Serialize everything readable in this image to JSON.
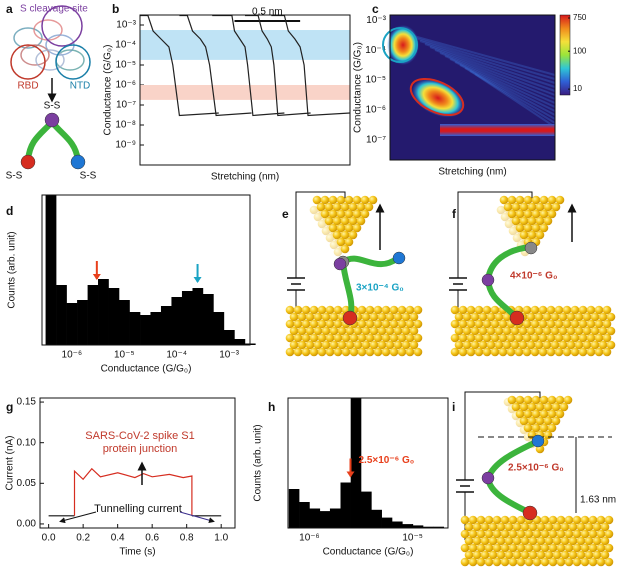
{
  "panel_labels": [
    "a",
    "b",
    "c",
    "d",
    "e",
    "f",
    "g",
    "h",
    "i"
  ],
  "diagram_a": {
    "site": "S cleavage site",
    "rbd": "RBD",
    "ntd": "NTD",
    "bonds": [
      "S-S",
      "S-S",
      "S-S"
    ]
  },
  "diagram_e": {
    "conductance": "3×10⁻⁴ G₀"
  },
  "diagram_f": {
    "conductance": "4×10⁻⁶ G₀"
  },
  "diagram_i": {
    "conductance": "2.5×10⁻⁶ G₀",
    "gap": "1.63 nm"
  },
  "chart_data": [
    {
      "type": "line",
      "log_y": true,
      "y_label": "Conductance (G/G₀)",
      "x_label": "Stretching (nm)",
      "scale_bar": {
        "length": 0.5,
        "label": "0.5 nm"
      },
      "xlim": [
        0,
        1.6
      ],
      "ylim": [
        1e-10,
        0.00316
      ],
      "yticks": [
        {
          "value": 0.001,
          "label": "10⁻³"
        },
        {
          "value": 0.0001,
          "label": "10⁻⁴"
        },
        {
          "value": 1e-05,
          "label": "10⁻⁵"
        },
        {
          "value": 1e-06,
          "label": "10⁻⁶"
        },
        {
          "value": 1e-07,
          "label": "10⁻⁷"
        },
        {
          "value": 1e-08,
          "label": "10⁻⁸"
        },
        {
          "value": 1e-09,
          "label": "10⁻⁹"
        }
      ],
      "bands": [
        {
          "range": [
            1.8e-05,
            0.00056
          ],
          "color": "#bfe3f5"
        },
        {
          "range": [
            1.8e-07,
            1e-06
          ],
          "color": "#f9d3c8"
        }
      ],
      "series": [
        {
          "color": "#222222",
          "x": [
            0,
            0.06,
            0.1,
            0.16,
            0.22,
            0.25,
            0.3,
            0.6
          ],
          "values": [
            0.003,
            0.003,
            0.0005,
            0.0002,
            8e-05,
            1e-05,
            3e-08,
            4e-08
          ]
        },
        {
          "color": "#222222",
          "x": [
            0.3,
            0.36,
            0.4,
            0.46,
            0.5,
            0.53,
            0.58,
            0.85
          ],
          "values": [
            0.003,
            0.003,
            0.0005,
            0.0002,
            8e-05,
            1e-05,
            3e-08,
            4e-08
          ]
        },
        {
          "color": "#222222",
          "x": [
            0.55,
            0.7,
            0.72,
            0.76,
            0.8,
            0.82,
            0.86,
            1.1
          ],
          "values": [
            0.003,
            0.003,
            0.0005,
            0.0002,
            8e-05,
            1e-05,
            3e-08,
            4e-08
          ]
        },
        {
          "color": "#222222",
          "x": [
            0.8,
            0.9,
            0.93,
            0.97,
            1.0,
            1.02,
            1.05,
            1.3
          ],
          "values": [
            0.003,
            0.003,
            0.0005,
            0.0002,
            8e-05,
            1e-05,
            3e-08,
            4e-08
          ]
        },
        {
          "color": "#222222",
          "x": [
            1.0,
            1.1,
            1.13,
            1.18,
            1.22,
            1.25,
            1.28,
            1.6
          ],
          "values": [
            0.003,
            0.003,
            0.0005,
            0.0002,
            8e-05,
            1e-05,
            3e-08,
            4e-08
          ]
        }
      ]
    },
    {
      "type": "heatmap",
      "log_y": true,
      "y_label": "Conductance (G/G₀)",
      "x_label": "Stretching (nm)",
      "scale_bar": {
        "length": 0.5,
        "label": "0.5 nm"
      },
      "xlim": [
        0,
        1.6
      ],
      "ylim": [
        2.1e-08,
        0.0015
      ],
      "yticks": [
        {
          "value": 0.001,
          "label": "10⁻³"
        },
        {
          "value": 0.0001,
          "label": "10⁻⁴"
        },
        {
          "value": 1e-05,
          "label": "10⁻⁵"
        },
        {
          "value": 1e-06,
          "label": "10⁻⁶"
        },
        {
          "value": 1e-07,
          "label": "10⁻⁷"
        }
      ],
      "colorbar": {
        "lim": [
          7,
          900
        ],
        "ticks": [
          750,
          100,
          10
        ],
        "colors": [
          "#3a1d80",
          "#2f5fd6",
          "#2fc6d6",
          "#9be53a",
          "#f5e03a",
          "#f08a1c",
          "#d7191c"
        ]
      },
      "highlights": [
        {
          "color": "#1aa3c4"
        },
        {
          "color": "#d62d20"
        }
      ]
    },
    {
      "type": "histogram",
      "log_x": true,
      "y_label": "Counts (arb. unit)",
      "x_label": "Conductance (G/G₀)",
      "color": "#000000",
      "xlim": [
        2.7e-07,
        0.0025
      ],
      "ylim": [
        0,
        100
      ],
      "xticks": [
        {
          "value": 1e-06,
          "label": "10⁻⁶"
        },
        {
          "value": 1e-05,
          "label": "10⁻⁵"
        },
        {
          "value": 0.0001,
          "label": "10⁻⁴"
        },
        {
          "value": 0.001,
          "label": "10⁻³"
        }
      ],
      "bins": [
        3.16e-07,
        5.01e-07,
        7.94e-07,
        1.26e-06,
        2e-06,
        3.16e-06,
        5.01e-06,
        7.94e-06,
        1.26e-05,
        2e-05,
        3.16e-05,
        5.01e-05,
        7.94e-05,
        0.000126,
        0.0002,
        0.000316,
        0.000501,
        0.000794,
        0.00126,
        0.002,
        0.00316
      ],
      "values": [
        100,
        40,
        28,
        30,
        40,
        44,
        38,
        30,
        22,
        20,
        22,
        26,
        32,
        36,
        38,
        34,
        22,
        10,
        4,
        1
      ],
      "arrows": [
        {
          "x": 3e-06,
          "color": "#e8401c"
        },
        {
          "x": 0.00025,
          "color": "#1aa3c4"
        }
      ]
    },
    {
      "type": "line",
      "y_label": "Current (nA)",
      "x_label": "Time (s)",
      "xlim": [
        -0.05,
        1.08
      ],
      "ylim": [
        -0.005,
        0.155
      ],
      "xticks": [
        {
          "value": 0,
          "label": "0.0"
        },
        0.2,
        0.4,
        0.6,
        0.8,
        {
          "value": 1,
          "label": "1.0"
        }
      ],
      "yticks": [
        {
          "value": 0,
          "label": "0.00"
        },
        0.05,
        {
          "value": 0.1,
          "label": "0.10"
        },
        0.15
      ],
      "annotations": [
        "SARS-CoV-2 spike S1",
        "protein junction",
        "Tunnelling current"
      ],
      "series": [
        {
          "color": "#111111",
          "x": [
            0,
            0.15,
            0.5,
            0.83,
            1.0
          ],
          "values": [
            0.01,
            0.01,
            null,
            0.01,
            0.01
          ]
        },
        {
          "color": "#d62d20",
          "x": [
            0.15,
            0.15,
            0.2,
            0.25,
            0.3,
            0.4,
            0.5,
            0.55,
            0.6,
            0.7,
            0.78,
            0.83,
            0.83
          ],
          "values": [
            0.01,
            0.065,
            0.055,
            0.068,
            0.058,
            0.063,
            0.057,
            0.062,
            0.058,
            0.061,
            0.057,
            0.059,
            0.01
          ]
        }
      ]
    },
    {
      "type": "histogram",
      "log_x": true,
      "y_label": "Counts (arb. unit)",
      "x_label": "Conductance (G/G₀)",
      "color": "#000000",
      "xlim": [
        6.2e-07,
        2.2e-05
      ],
      "ylim": [
        0,
        100
      ],
      "xticks": [
        {
          "value": 1e-06,
          "label": "10⁻⁶"
        },
        {
          "value": 1e-05,
          "label": "10⁻⁵"
        }
      ],
      "bins": [
        6.31e-07,
        7.94e-07,
        1e-06,
        1.26e-06,
        1.58e-06,
        2e-06,
        2.51e-06,
        3.16e-06,
        3.98e-06,
        5.01e-06,
        6.31e-06,
        7.94e-06,
        1e-05,
        1.26e-05,
        1.58e-05,
        2e-05
      ],
      "values": [
        30,
        20,
        15,
        13,
        15,
        35,
        100,
        28,
        14,
        8,
        5,
        3,
        2,
        1,
        1
      ],
      "arrows": [
        {
          "x": 2.5e-06,
          "color": "#e8401c",
          "label": "2.5×10⁻⁶ G₀"
        }
      ]
    }
  ]
}
